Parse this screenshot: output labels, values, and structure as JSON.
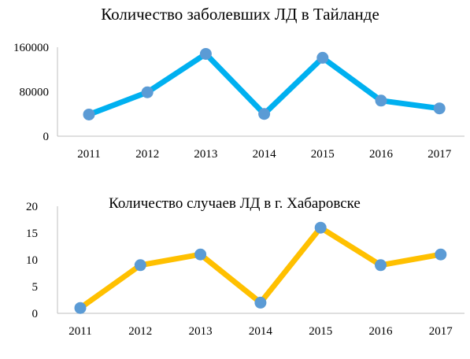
{
  "chart_data": [
    {
      "type": "line",
      "title": "Количество заболевших ЛД в Тайланде",
      "categories": [
        "2011",
        "2012",
        "2013",
        "2014",
        "2015",
        "2016",
        "2017"
      ],
      "series": [
        {
          "values": [
            39000,
            79000,
            148000,
            40000,
            141000,
            64000,
            50000
          ]
        }
      ],
      "yticks": [
        "0",
        "80000",
        "160000"
      ],
      "ylim": [
        0,
        160000
      ],
      "grid": false,
      "line_color": "#00B0F0",
      "marker_color": "#5B9BD5"
    },
    {
      "type": "line",
      "title": "Количество случаев ЛД в г. Хабаровске",
      "categories": [
        "2011",
        "2012",
        "2013",
        "2014",
        "2015",
        "2016",
        "2017"
      ],
      "series": [
        {
          "values": [
            1,
            9,
            11,
            2,
            16,
            9,
            11
          ]
        }
      ],
      "yticks": [
        "0",
        "5",
        "10",
        "15",
        "20"
      ],
      "ylim": [
        0,
        20
      ],
      "grid": false,
      "line_color": "#FFC000",
      "marker_color": "#5B9BD5"
    }
  ]
}
